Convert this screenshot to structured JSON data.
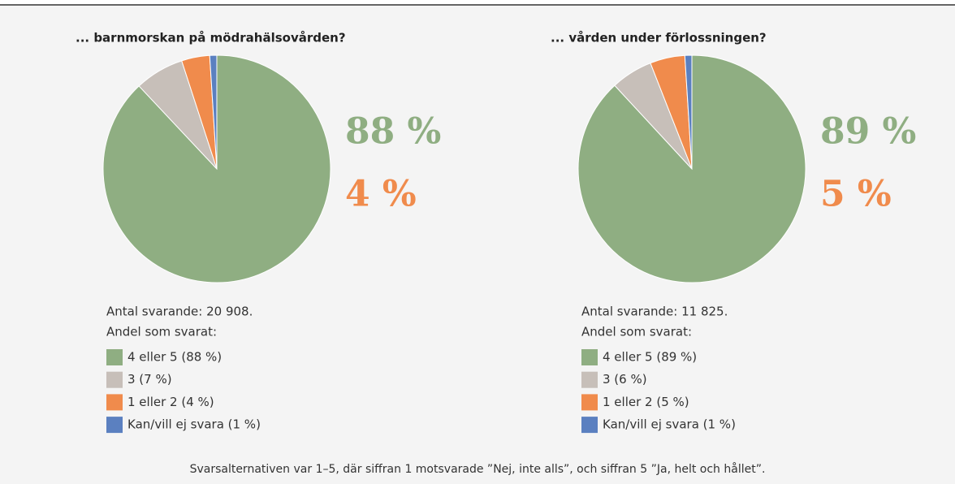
{
  "chart_data": [
    {
      "type": "pie",
      "title": "... barnmorskan på mödrahälsovården?",
      "categories": [
        "4 eller 5 (88 %)",
        "3 (7 %)",
        "1 eller 2 (4 %)",
        "Kan/vill ej svara (1 %)"
      ],
      "values": [
        88,
        7,
        4,
        1
      ],
      "colors": [
        "#8fae82",
        "#c7bfb9",
        "#f08b4c",
        "#5b80c0"
      ],
      "annotations": [
        {
          "text": "88 %",
          "color": "#8fae82"
        },
        {
          "text": "4 %",
          "color": "#f08b4c"
        }
      ],
      "note": "Antal svarande: 20 908.",
      "legend_title": "Andel som svarat:"
    },
    {
      "type": "pie",
      "title": "... vården under förlossningen?",
      "categories": [
        "4 eller 5 (89 %)",
        "3 (6 %)",
        "1 eller 2 (5 %)",
        "Kan/vill ej svara (1 %)"
      ],
      "values": [
        89,
        6,
        5,
        1
      ],
      "colors": [
        "#8fae82",
        "#c7bfb9",
        "#f08b4c",
        "#5b80c0"
      ],
      "annotations": [
        {
          "text": "89 %",
          "color": "#8fae82"
        },
        {
          "text": "5 %",
          "color": "#f08b4c"
        }
      ],
      "note": "Antal svarande: 11 825.",
      "legend_title": "Andel som svarat:"
    }
  ],
  "footnote": "Svarsalternativen var 1–5, där siffran 1 motsvarade ”Nej, inte alls”, och siffran 5 ”Ja, helt och hållet”."
}
